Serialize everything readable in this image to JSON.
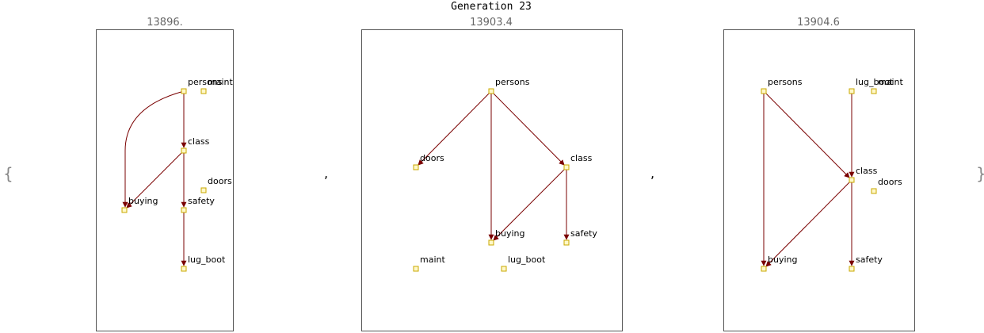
{
  "title": "Generation 23",
  "brace_open": "{",
  "brace_close": "}",
  "separator": ",",
  "colors": {
    "edge": "#7a0000",
    "node_fill": "#fff8c8",
    "node_stroke": "#c8a800",
    "frame": "#555555",
    "score": "#666666"
  },
  "panels": [
    {
      "score": "13896.",
      "nodes": [
        {
          "id": "persons",
          "label": "persons"
        },
        {
          "id": "maint",
          "label": "maint"
        },
        {
          "id": "class",
          "label": "class"
        },
        {
          "id": "doors",
          "label": "doors"
        },
        {
          "id": "buying",
          "label": "buying"
        },
        {
          "id": "safety",
          "label": "safety"
        },
        {
          "id": "lug_boot",
          "label": "lug_boot"
        }
      ],
      "edges": [
        {
          "from": "persons",
          "to": "class"
        },
        {
          "from": "persons",
          "to": "buying"
        },
        {
          "from": "class",
          "to": "buying"
        },
        {
          "from": "class",
          "to": "safety"
        },
        {
          "from": "safety",
          "to": "lug_boot"
        }
      ]
    },
    {
      "score": "13903.4",
      "nodes": [
        {
          "id": "persons",
          "label": "persons"
        },
        {
          "id": "doors",
          "label": "doors"
        },
        {
          "id": "class",
          "label": "class"
        },
        {
          "id": "buying",
          "label": "buying"
        },
        {
          "id": "safety",
          "label": "safety"
        },
        {
          "id": "maint",
          "label": "maint"
        },
        {
          "id": "lug_boot",
          "label": "lug_boot"
        }
      ],
      "edges": [
        {
          "from": "persons",
          "to": "doors"
        },
        {
          "from": "persons",
          "to": "buying"
        },
        {
          "from": "persons",
          "to": "class"
        },
        {
          "from": "class",
          "to": "buying"
        },
        {
          "from": "class",
          "to": "safety"
        }
      ]
    },
    {
      "score": "13904.6",
      "nodes": [
        {
          "id": "persons",
          "label": "persons"
        },
        {
          "id": "lug_boot",
          "label": "lug_boot"
        },
        {
          "id": "maint",
          "label": "maint"
        },
        {
          "id": "class",
          "label": "class"
        },
        {
          "id": "doors",
          "label": "doors"
        },
        {
          "id": "buying",
          "label": "buying"
        },
        {
          "id": "safety",
          "label": "safety"
        }
      ],
      "edges": [
        {
          "from": "persons",
          "to": "buying"
        },
        {
          "from": "persons",
          "to": "class"
        },
        {
          "from": "lug_boot",
          "to": "class"
        },
        {
          "from": "class",
          "to": "buying"
        },
        {
          "from": "class",
          "to": "safety"
        }
      ]
    }
  ]
}
